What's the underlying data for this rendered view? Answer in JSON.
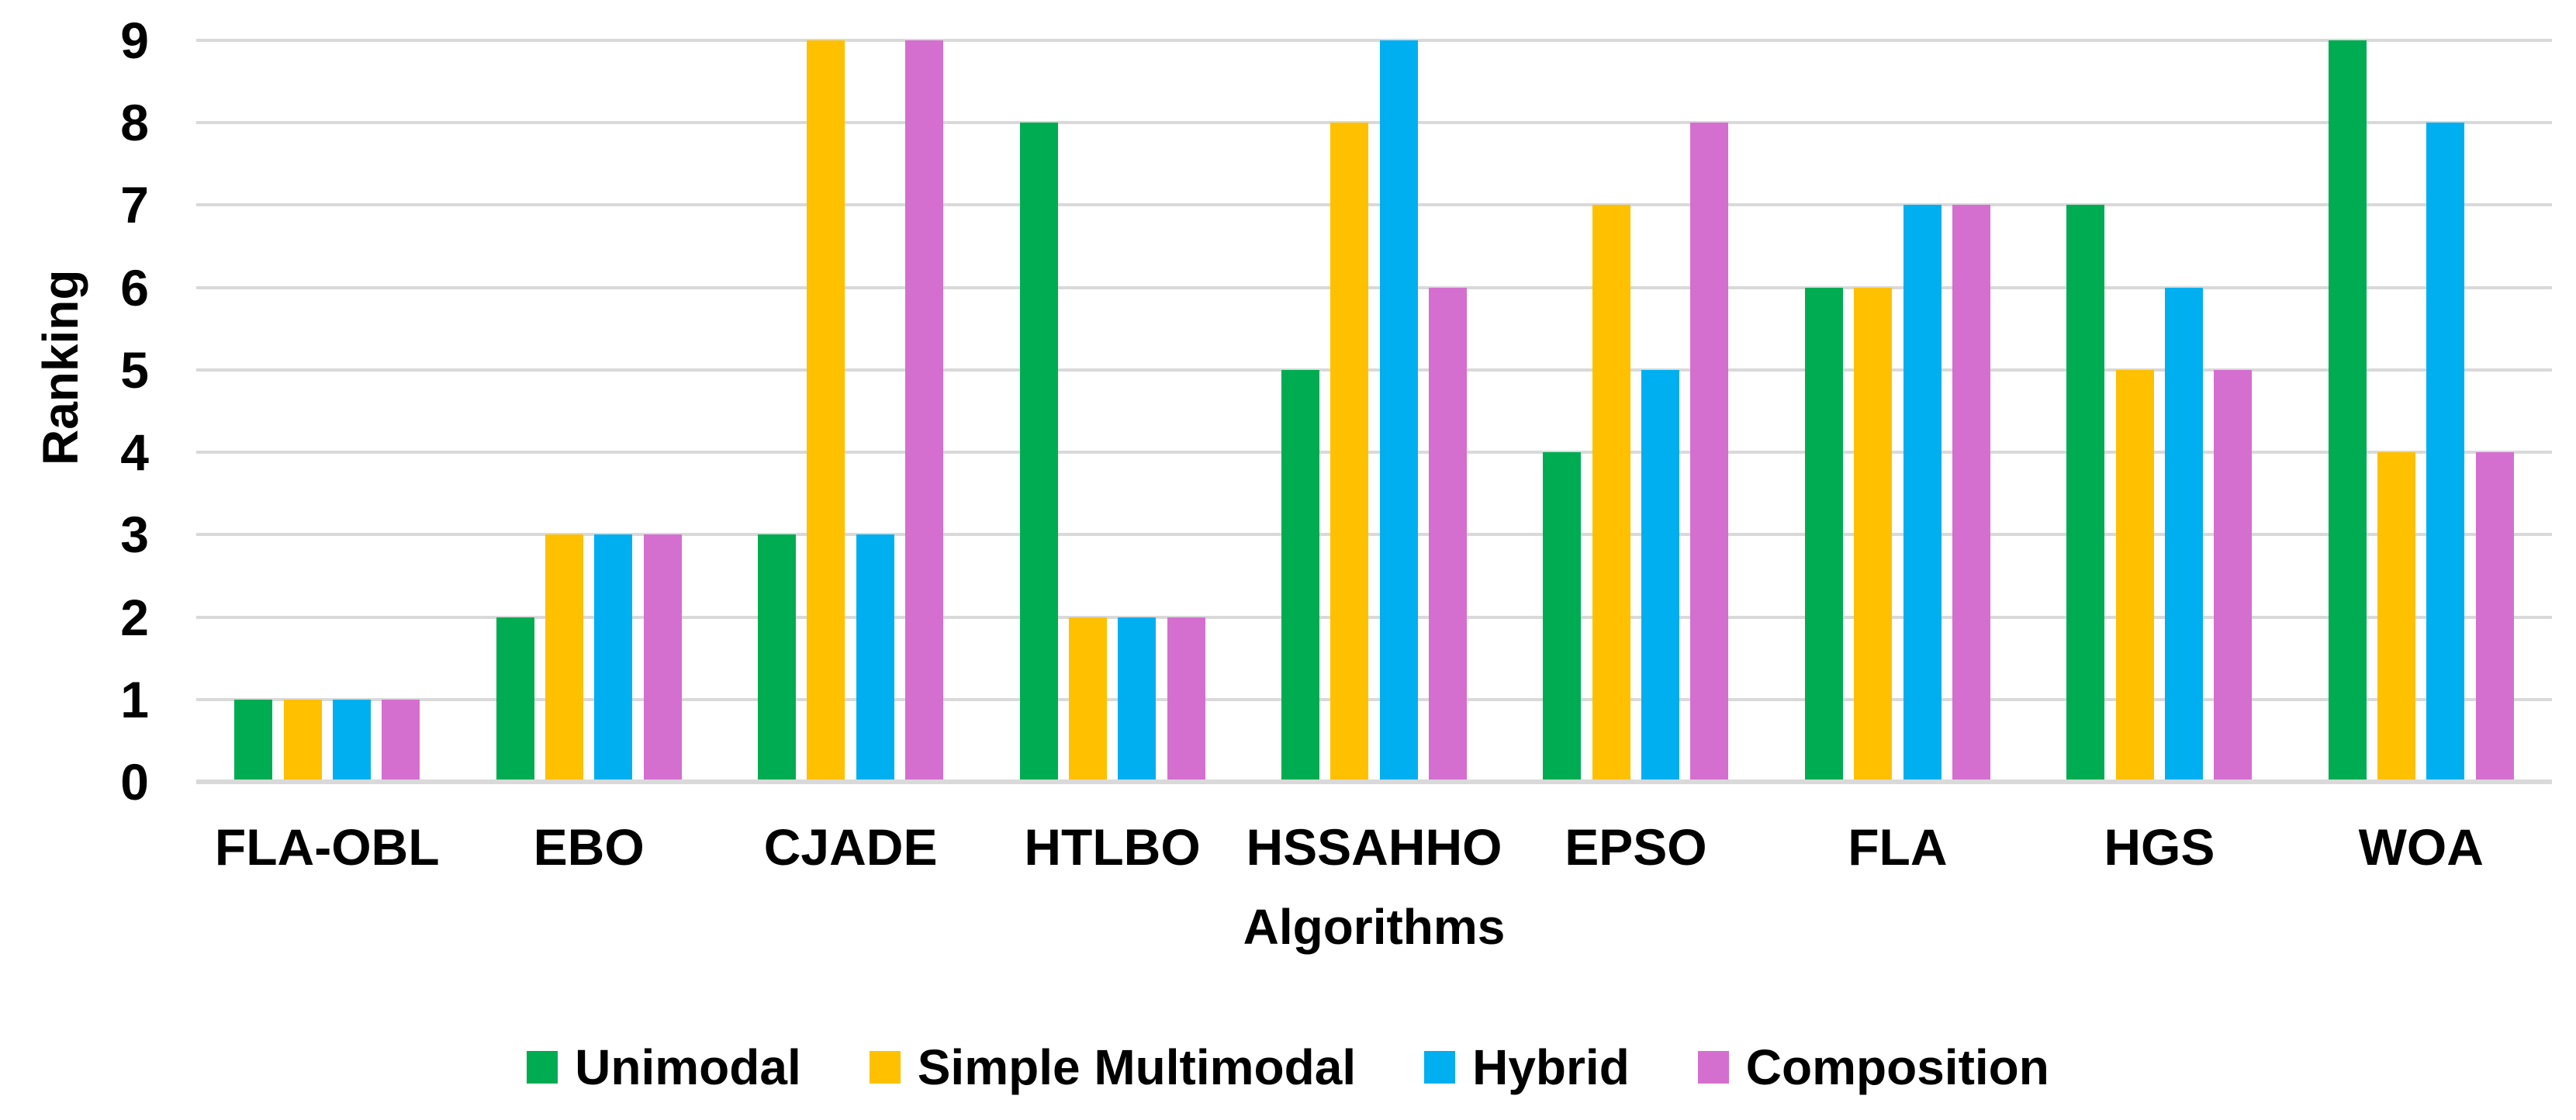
{
  "chart_data": {
    "type": "bar",
    "title": "",
    "categories": [
      "FLA-OBL",
      "EBO",
      "CJADE",
      "HTLBO",
      "HSSAHHO",
      "EPSO",
      "FLA",
      "HGS",
      "WOA"
    ],
    "series": [
      {
        "name": "Unimodal",
        "color": "#00AC52",
        "values": [
          1,
          2,
          3,
          8,
          5,
          4,
          6,
          7,
          9
        ]
      },
      {
        "name": "Simple Multimodal",
        "color": "#FFC000",
        "values": [
          1,
          3,
          9,
          2,
          8,
          7,
          6,
          5,
          4
        ]
      },
      {
        "name": "Hybrid",
        "color": "#00AFF0",
        "values": [
          1,
          3,
          3,
          2,
          9,
          5,
          7,
          6,
          8
        ]
      },
      {
        "name": "Composition",
        "color": "#D46FD0",
        "values": [
          1,
          3,
          9,
          2,
          6,
          8,
          7,
          5,
          4
        ]
      }
    ],
    "xlabel": "Algorithms",
    "ylabel": "Ranking",
    "ylim": [
      0,
      9
    ],
    "yticks": [
      0,
      1,
      2,
      3,
      4,
      5,
      6,
      7,
      8,
      9
    ],
    "grid": true,
    "legend_position": "bottom",
    "gridline_color": "#D9D9D9",
    "axis_line_color": "#D9D9D9",
    "background_color": "#FFFFFF",
    "text_color": "#000000"
  }
}
